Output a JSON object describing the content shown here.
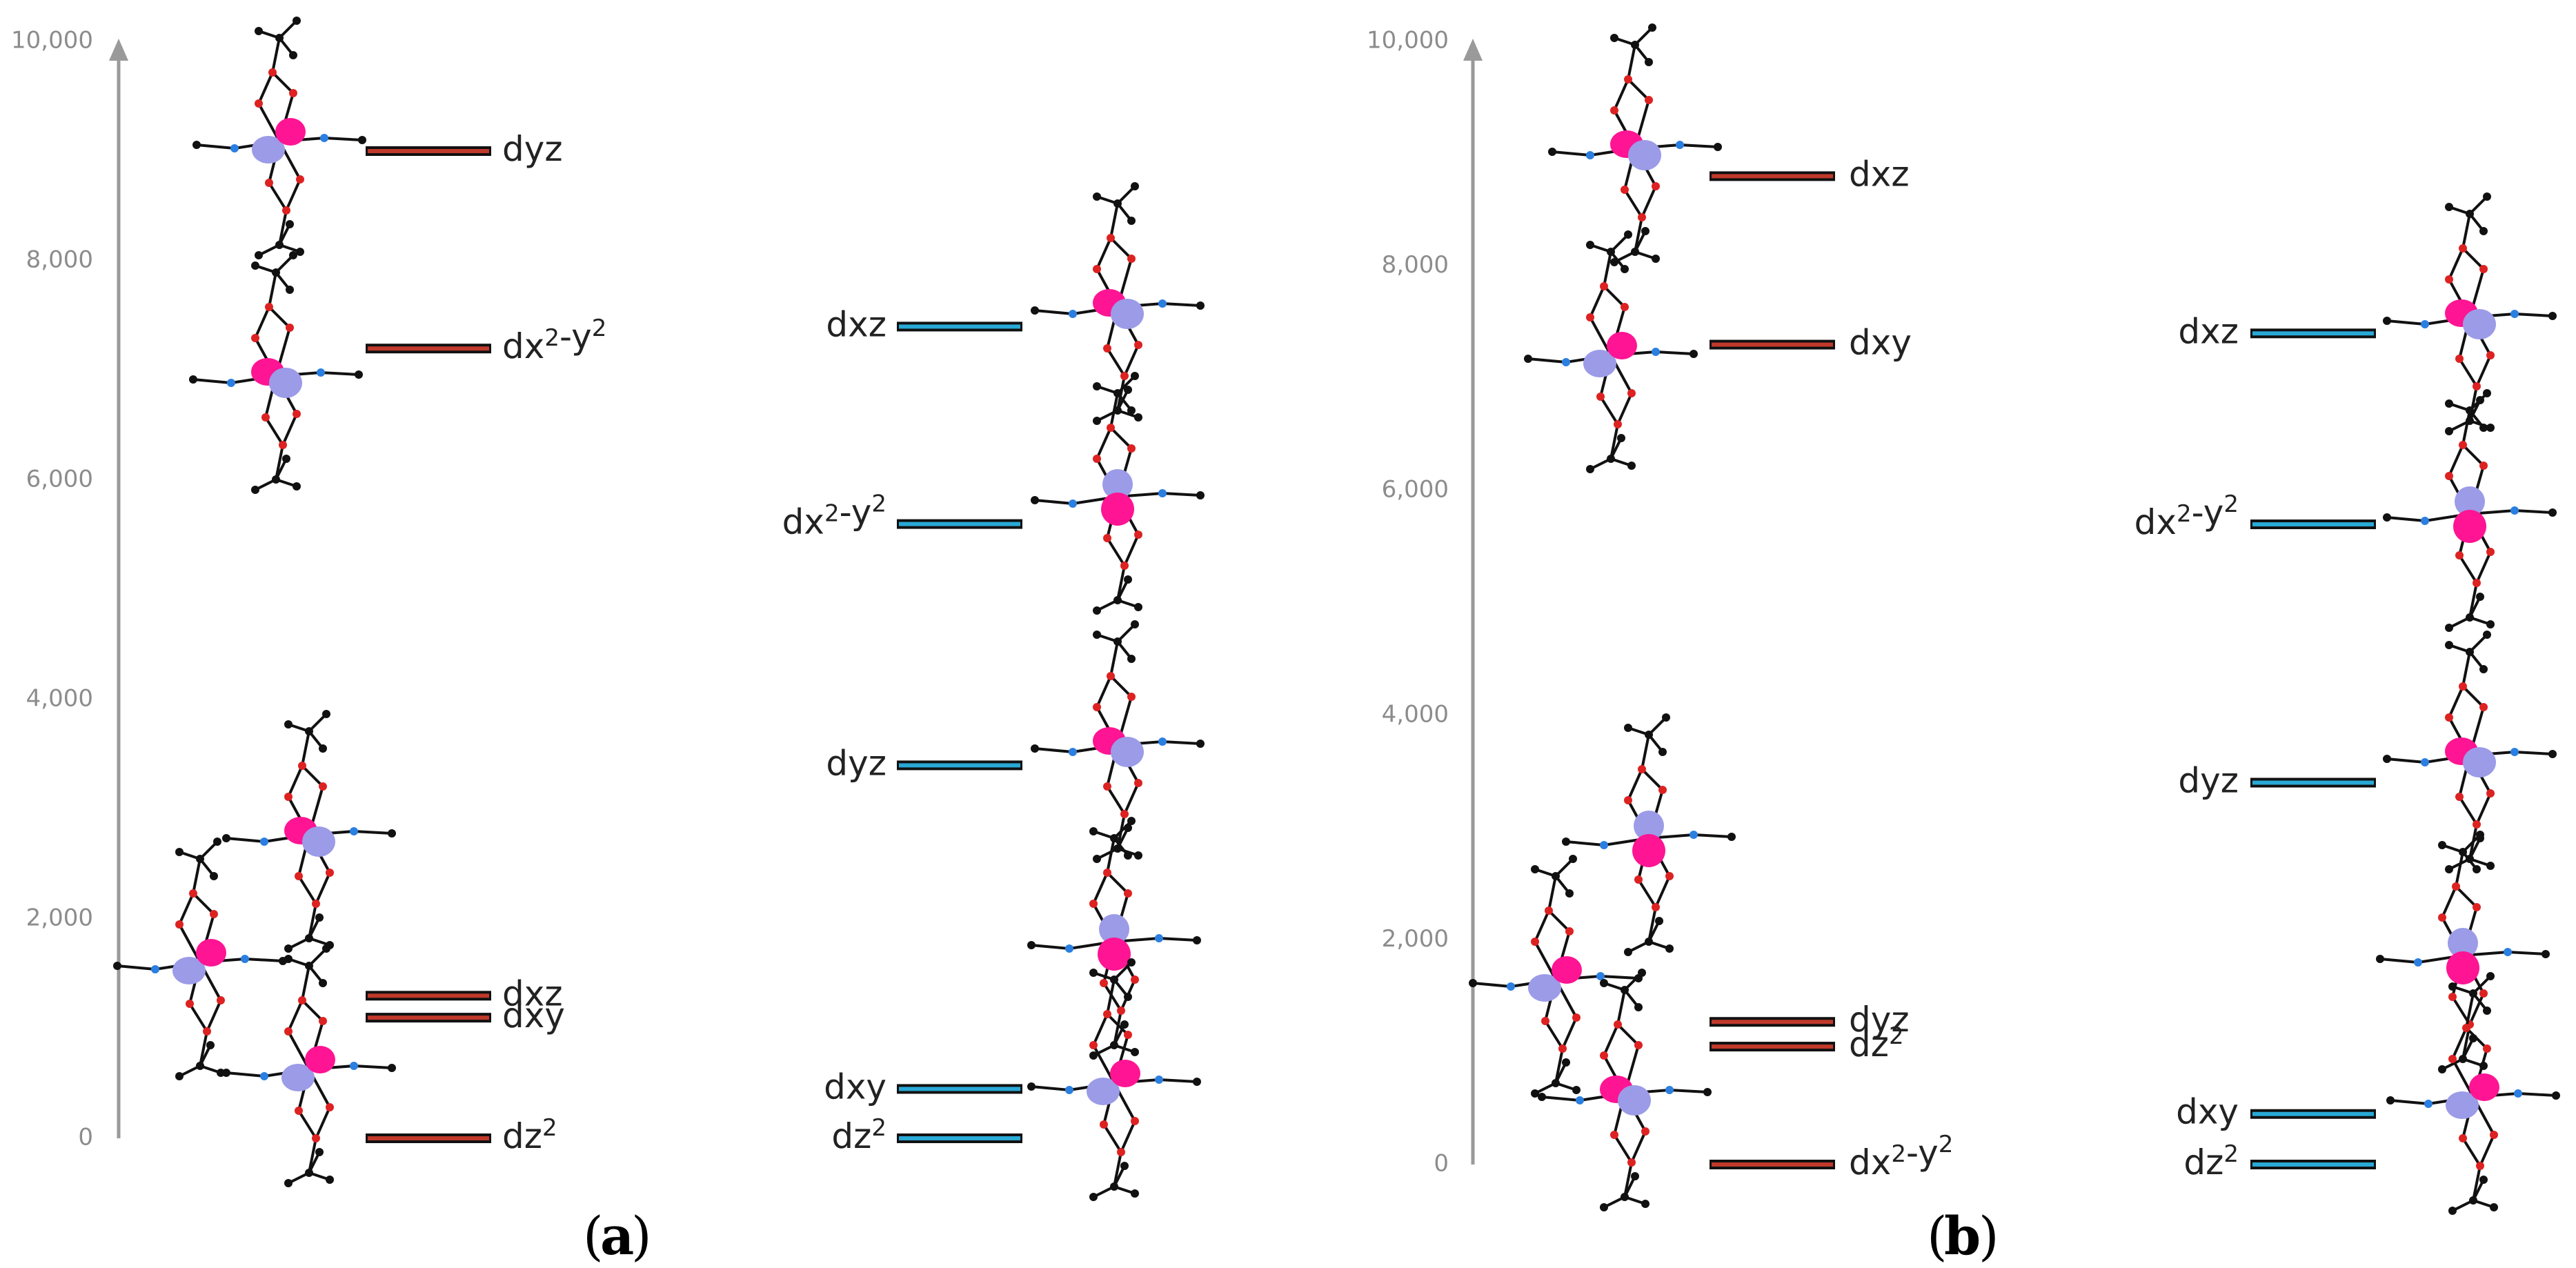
{
  "panels": [
    {
      "id": "a",
      "label": "a",
      "axis": {
        "min": 0,
        "max": 10000,
        "ticks": [
          0,
          2000,
          4000,
          6000,
          8000,
          10000
        ],
        "tick_labels": [
          "0",
          "2,000",
          "4,000",
          "6,000",
          "8,000",
          "10,000"
        ]
      },
      "red_levels": [
        {
          "name": "dyz",
          "energy": 9000
        },
        {
          "name": "dx2-y2",
          "energy": 7200
        },
        {
          "name": "dxz",
          "energy": 1300
        },
        {
          "name": "dxy",
          "energy": 1100
        },
        {
          "name": "dz2",
          "energy": 0
        }
      ],
      "blue_levels": [
        {
          "name": "dxz",
          "energy": 7400
        },
        {
          "name": "dx2-y2",
          "energy": 5600
        },
        {
          "name": "dyz",
          "energy": 3400
        },
        {
          "name": "dxy",
          "energy": 450
        },
        {
          "name": "dz2",
          "energy": 0
        }
      ]
    },
    {
      "id": "b",
      "label": "b",
      "axis": {
        "min": 0,
        "max": 10000,
        "ticks": [
          0,
          2000,
          4000,
          6000,
          8000,
          10000
        ],
        "tick_labels": [
          "0",
          "2,000",
          "4,000",
          "6,000",
          "8,000",
          "10,000"
        ]
      },
      "red_levels": [
        {
          "name": "dxz",
          "energy": 8800
        },
        {
          "name": "dxy",
          "energy": 7300
        },
        {
          "name": "dyz",
          "energy": 1270
        },
        {
          "name": "dz2",
          "energy": 1050
        },
        {
          "name": "dx2-y2",
          "energy": 0
        }
      ],
      "blue_levels": [
        {
          "name": "dxz",
          "energy": 7400
        },
        {
          "name": "dx2-y2",
          "energy": 5700
        },
        {
          "name": "dyz",
          "energy": 3400
        },
        {
          "name": "dxy",
          "energy": 450
        },
        {
          "name": "dz2",
          "energy": 0
        }
      ]
    }
  ],
  "colors": {
    "red_level": "#c0392b",
    "blue_level": "#29a9d6",
    "axis": "#9a9a9a",
    "lobe_pink": "#ff1493",
    "lobe_lavender": "#9b9be8",
    "atom_red": "#dd2222",
    "atom_blue": "#2a7fe0",
    "atom_black": "#111111"
  }
}
